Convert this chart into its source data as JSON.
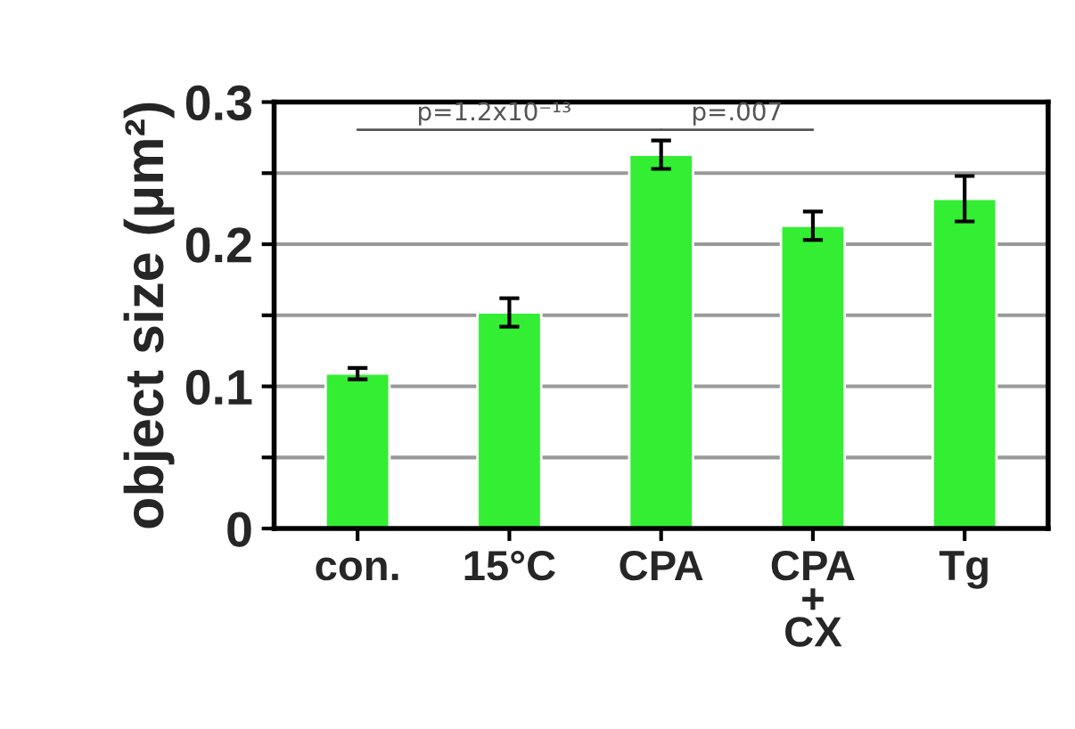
{
  "chart_data": {
    "type": "bar",
    "ylabel": "object size (μm²)",
    "categories": [
      "con.",
      "15°C",
      "CPA",
      "CPA\n+\nCX",
      "Tg"
    ],
    "values": [
      0.109,
      0.152,
      0.263,
      0.213,
      0.232
    ],
    "errors": [
      0.004,
      0.01,
      0.01,
      0.01,
      0.016
    ],
    "color": "#33ee33",
    "ylim": [
      0,
      0.3
    ],
    "yticks": [
      0,
      {
        "value": 0.05,
        "label": null
      },
      0.1,
      {
        "value": 0.15,
        "label": null
      },
      0.2,
      {
        "value": 0.25,
        "label": null
      },
      0.3
    ],
    "grid": "y",
    "annotations": [
      "p=1.2x10⁻¹³",
      "p=.007"
    ]
  }
}
